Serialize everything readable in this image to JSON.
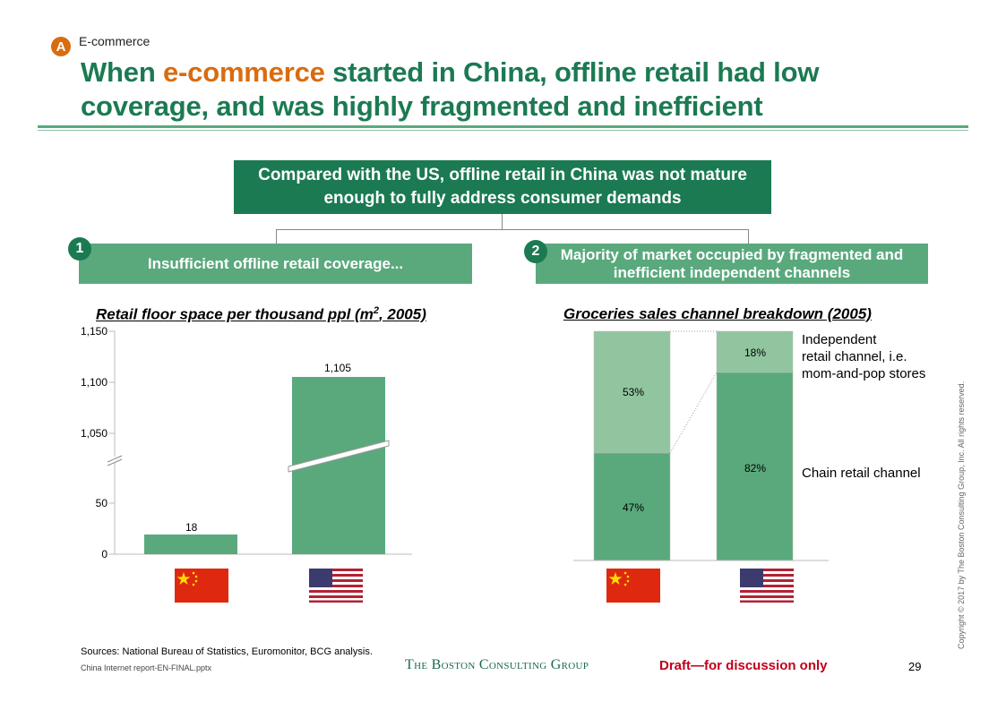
{
  "section": {
    "badge": "A",
    "label": "E-commerce"
  },
  "title": {
    "part1": "When ",
    "highlight": "e-commerce",
    "part2": " started in China, offline retail had low coverage, and was highly fragmented and inefficient"
  },
  "main_box": "Compared with the US, offline retail in China was not mature enough to fully address consumer demands",
  "boxes": [
    {
      "num": "1",
      "text": "Insufficient offline retail coverage..."
    },
    {
      "num": "2",
      "text": "Majority of market occupied by fragmented and inefficient independent channels"
    }
  ],
  "left_chart_title_pre": "Retail floor space per thousand ppl (m",
  "left_chart_title_sup": "2",
  "left_chart_title_post": ", 2005)",
  "right_chart_title": "Groceries sales channel breakdown (2005)",
  "chart_data": [
    {
      "type": "bar",
      "categories": [
        "China",
        "US"
      ],
      "values": [
        18,
        1105
      ],
      "value_labels": [
        "18",
        "1,105"
      ],
      "yticks": [
        "0",
        "50",
        "1,050",
        "1,100",
        "1,150"
      ],
      "axis_break": true,
      "ylim": [
        0,
        1150
      ]
    },
    {
      "type": "bar",
      "stacked": true,
      "categories": [
        "China",
        "US"
      ],
      "series": [
        {
          "name": "Chain retail channel",
          "values": [
            47,
            82
          ],
          "labels": [
            "47%",
            "82%"
          ]
        },
        {
          "name": "Independent retail channel, i.e. mom-and-pop stores",
          "values": [
            53,
            18
          ],
          "labels": [
            "53%",
            "18%"
          ]
        }
      ],
      "ylim": [
        0,
        100
      ]
    }
  ],
  "legend": {
    "independent_lines": [
      "Independent",
      "retail channel, i.e.",
      "mom-and-pop stores"
    ],
    "chain": "Chain retail channel"
  },
  "colors": {
    "dark_green": "#1b7a52",
    "mid_green": "#5aa97d",
    "light_green": "#90c59f",
    "orange": "#d96c10",
    "draft_red": "#c0001a"
  },
  "footer": {
    "sources": "Sources: National Bureau of Statistics, Euromonitor, BCG analysis.",
    "file": "China Internet report-EN-FINAL.pptx",
    "company": "The Boston Consulting Group",
    "draft": "Draft—for discussion only",
    "page": "29",
    "copyright": "Copyright © 2017 by The Boston Consulting Group, Inc. All rights reserved."
  }
}
